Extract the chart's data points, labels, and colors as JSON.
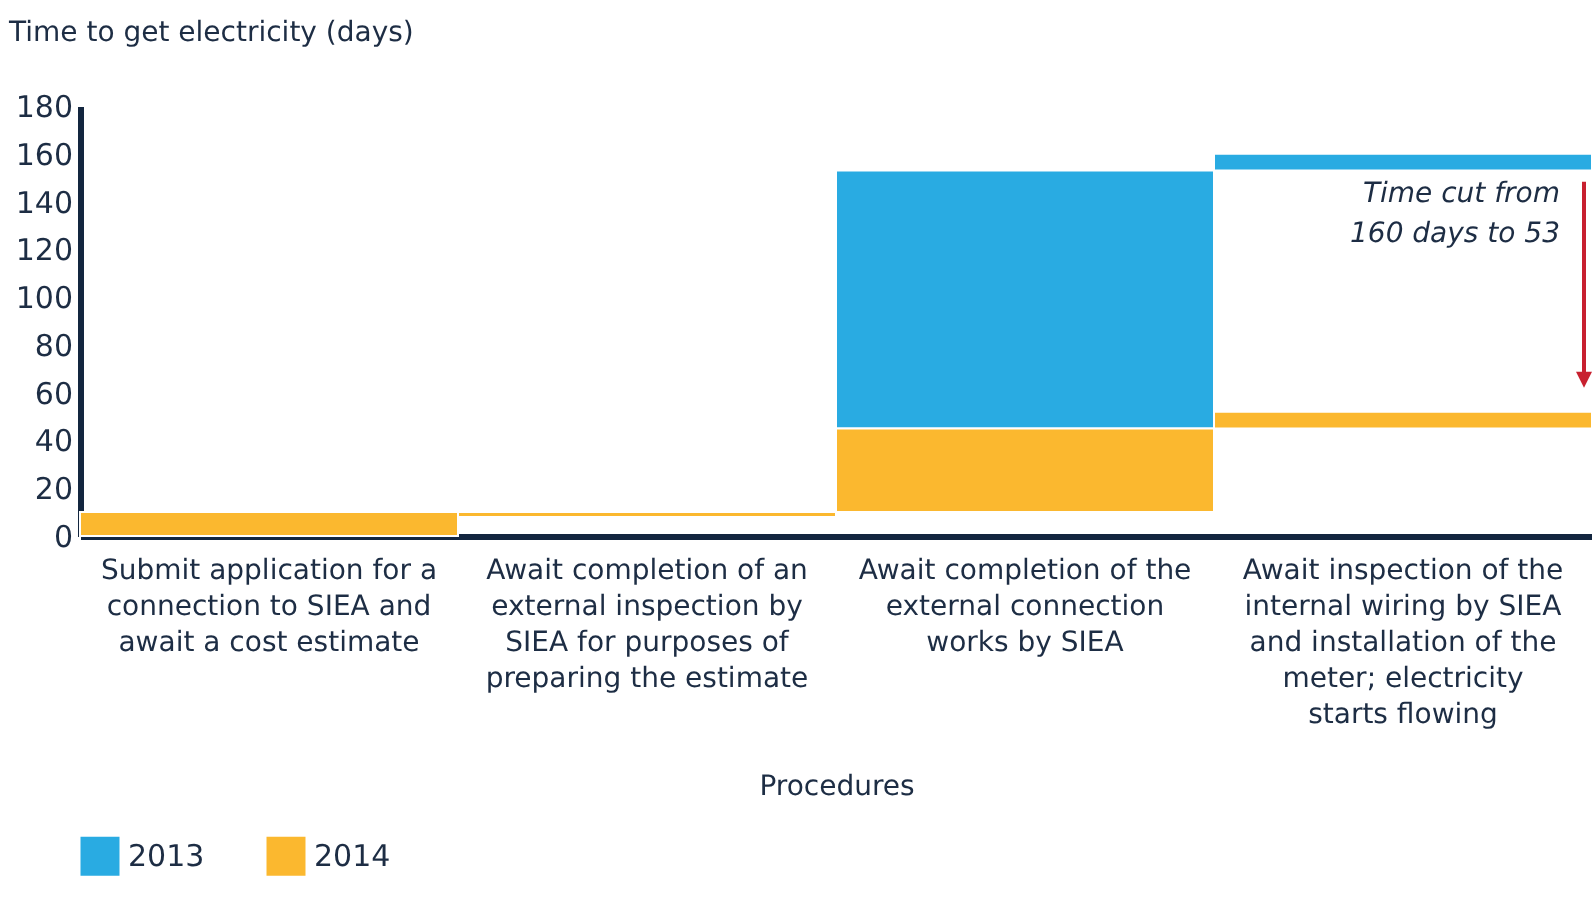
{
  "chart_data": {
    "type": "bar",
    "ylabel": "Time to get electricity (days)",
    "xlabel": "Procedures",
    "categories": [
      "Submit application for a connection to SIEA and await a cost estimate",
      "Await completion of an external inspection by SIEA for purposes of preparing the estimate",
      "Await completion of the external connection works by SIEA",
      "Await inspection of the internal wiring by SIEA and installation of the meter; electricity starts flowing"
    ],
    "series": [
      {
        "name": "2013",
        "color": "#29abe2",
        "values": [
          null,
          null,
          108,
          7
        ],
        "base": [
          null,
          null,
          45,
          153
        ]
      },
      {
        "name": "2014",
        "color": "#fbb82f",
        "values": [
          10,
          2,
          35,
          7
        ],
        "base": [
          0,
          8,
          10,
          45
        ]
      }
    ],
    "ylim": [
      0,
      180
    ],
    "yticks": [
      0,
      20,
      40,
      60,
      80,
      100,
      120,
      140,
      160,
      180
    ],
    "grid": false,
    "legend": "bottom",
    "annotations": [
      "Time cut from 160 days to 53"
    ]
  }
}
